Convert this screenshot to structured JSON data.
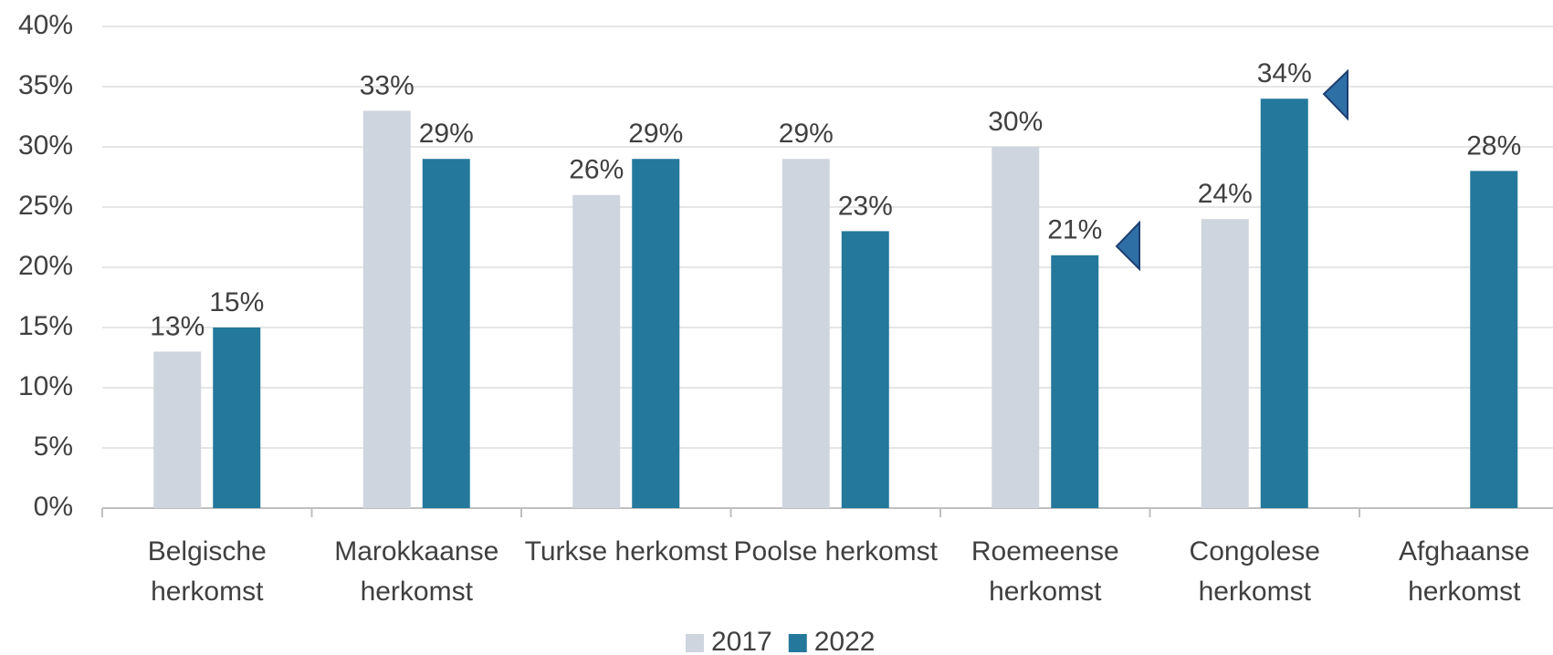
{
  "chart_data": {
    "type": "bar",
    "categories": [
      "Belgische herkomst",
      "Marokkaanse herkomst",
      "Turkse herkomst",
      "Poolse herkomst",
      "Roemeense herkomst",
      "Congolese herkomst",
      "Afghaanse herkomst"
    ],
    "series": [
      {
        "name": "2017",
        "color": "#cfd5de",
        "values": [
          13,
          33,
          26,
          29,
          30,
          24,
          null
        ],
        "value_labels": [
          "13%",
          "33%",
          "26%",
          "29%",
          "30%",
          "24%",
          null
        ]
      },
      {
        "name": "2022",
        "color": "#24789b",
        "values": [
          15,
          29,
          29,
          23,
          21,
          34,
          28
        ],
        "value_labels": [
          "15%",
          "29%",
          "29%",
          "23%",
          "21%",
          "34%",
          "28%"
        ]
      }
    ],
    "ylim": [
      0,
      40
    ],
    "yticks": [
      {
        "value": 0,
        "label": "0%"
      },
      {
        "value": 5,
        "label": "5%"
      },
      {
        "value": 10,
        "label": "10%"
      },
      {
        "value": 15,
        "label": "15%"
      },
      {
        "value": 20,
        "label": "20%"
      },
      {
        "value": 25,
        "label": "25%"
      },
      {
        "value": 30,
        "label": "30%"
      },
      {
        "value": 35,
        "label": "35%"
      },
      {
        "value": 40,
        "label": "40%"
      }
    ],
    "grid": true,
    "legend": "bottom"
  }
}
